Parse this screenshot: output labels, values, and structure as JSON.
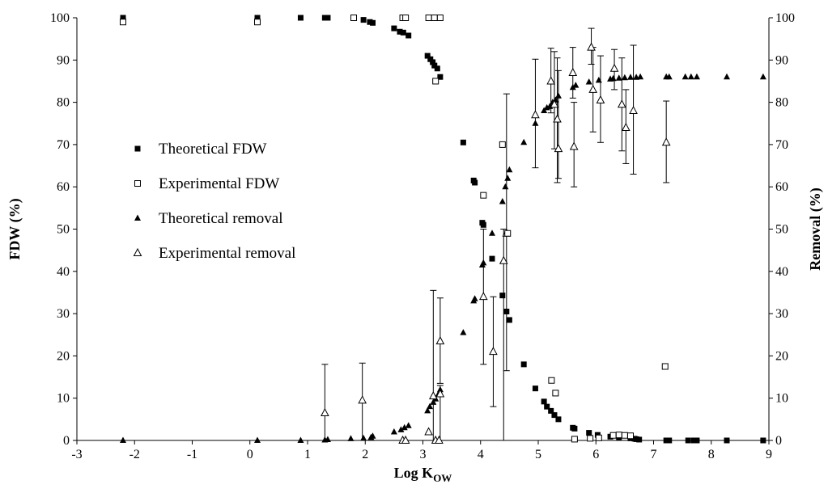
{
  "chart_data": {
    "type": "scatter",
    "xlabel": "Log K",
    "xlabel_sub": "OW",
    "ylabel_left": "FDW (%)",
    "ylabel_right": "Removal (%)",
    "xlim": [
      -3,
      9
    ],
    "ylim": [
      0,
      100
    ],
    "x_ticks": [
      "-3",
      "-2",
      "-1",
      "0",
      "1",
      "2",
      "3",
      "4",
      "5",
      "6",
      "7",
      "8",
      "9"
    ],
    "y_ticks": [
      "0",
      "10",
      "20",
      "30",
      "40",
      "50",
      "60",
      "70",
      "80",
      "90",
      "100"
    ],
    "legend_position": "left-middle",
    "series": [
      {
        "name": "Theoretical FDW",
        "marker": "filled-square",
        "points": [
          [
            -2.2,
            100
          ],
          [
            0.13,
            100
          ],
          [
            0.88,
            100
          ],
          [
            1.3,
            100
          ],
          [
            1.35,
            100
          ],
          [
            1.97,
            99.5
          ],
          [
            2.08,
            99
          ],
          [
            2.13,
            98.8
          ],
          [
            2.5,
            97.5
          ],
          [
            2.6,
            96.7
          ],
          [
            2.66,
            96.5
          ],
          [
            2.75,
            95.8
          ],
          [
            3.08,
            91
          ],
          [
            3.13,
            90.2
          ],
          [
            3.17,
            89.5
          ],
          [
            3.2,
            88.7
          ],
          [
            3.25,
            88
          ],
          [
            3.3,
            86
          ],
          [
            3.7,
            70.5
          ],
          [
            3.88,
            61.5
          ],
          [
            3.9,
            61
          ],
          [
            4.03,
            51.5
          ],
          [
            4.05,
            51
          ],
          [
            4.2,
            43
          ],
          [
            4.38,
            34.3
          ],
          [
            4.45,
            30.5
          ],
          [
            4.5,
            28.5
          ],
          [
            4.75,
            18
          ],
          [
            4.95,
            12.3
          ],
          [
            5.1,
            9.2
          ],
          [
            5.15,
            8
          ],
          [
            5.22,
            7
          ],
          [
            5.28,
            6
          ],
          [
            5.35,
            5
          ],
          [
            5.6,
            3
          ],
          [
            5.63,
            2.8
          ],
          [
            5.88,
            1.8
          ],
          [
            6.03,
            1.3
          ],
          [
            6.25,
            0.9
          ],
          [
            6.4,
            0.7
          ],
          [
            6.6,
            0.5
          ],
          [
            6.67,
            0.4
          ],
          [
            6.7,
            0.3
          ],
          [
            6.75,
            0.2
          ],
          [
            7.22,
            0
          ],
          [
            7.27,
            0
          ],
          [
            7.6,
            0
          ],
          [
            7.7,
            0
          ],
          [
            7.75,
            0
          ],
          [
            8.27,
            0
          ],
          [
            8.9,
            0
          ]
        ]
      },
      {
        "name": "Experimental FDW",
        "marker": "open-square",
        "points": [
          [
            -2.2,
            99
          ],
          [
            0.13,
            99
          ],
          [
            1.8,
            100
          ],
          [
            2.65,
            100
          ],
          [
            2.7,
            100
          ],
          [
            3.1,
            100
          ],
          [
            3.2,
            100
          ],
          [
            3.3,
            100
          ],
          [
            3.22,
            85
          ],
          [
            4.38,
            70
          ],
          [
            4.05,
            58
          ],
          [
            4.47,
            49
          ],
          [
            5.23,
            14.2
          ],
          [
            5.3,
            11.2
          ],
          [
            5.63,
            0.3
          ],
          [
            5.9,
            0.5
          ],
          [
            6.05,
            0.6
          ],
          [
            6.3,
            1.2
          ],
          [
            6.4,
            1.3
          ],
          [
            6.5,
            1.2
          ],
          [
            6.6,
            1.1
          ],
          [
            7.2,
            17.5
          ]
        ]
      },
      {
        "name": "Theoretical removal",
        "marker": "filled-triangle",
        "points": [
          [
            -2.2,
            0
          ],
          [
            0.13,
            0
          ],
          [
            0.88,
            0
          ],
          [
            1.3,
            0.1
          ],
          [
            1.35,
            0.2
          ],
          [
            1.75,
            0.4
          ],
          [
            1.97,
            0.5
          ],
          [
            2.1,
            0.7
          ],
          [
            2.13,
            1
          ],
          [
            2.5,
            2
          ],
          [
            2.62,
            2.5
          ],
          [
            2.68,
            3
          ],
          [
            2.75,
            3.5
          ],
          [
            3.08,
            7
          ],
          [
            3.12,
            8
          ],
          [
            3.18,
            9
          ],
          [
            3.22,
            9.8
          ],
          [
            3.27,
            11
          ],
          [
            3.3,
            12
          ],
          [
            3.7,
            25.5
          ],
          [
            3.88,
            33
          ],
          [
            3.9,
            33.5
          ],
          [
            4.03,
            41.5
          ],
          [
            4.05,
            42
          ],
          [
            4.2,
            49
          ],
          [
            4.38,
            56.5
          ],
          [
            4.43,
            60
          ],
          [
            4.47,
            62
          ],
          [
            4.5,
            64
          ],
          [
            4.75,
            70.5
          ],
          [
            4.95,
            75
          ],
          [
            5.1,
            78
          ],
          [
            5.15,
            78.7
          ],
          [
            5.2,
            79
          ],
          [
            5.25,
            80
          ],
          [
            5.3,
            80.5
          ],
          [
            5.35,
            81.5
          ],
          [
            5.6,
            83.5
          ],
          [
            5.65,
            84
          ],
          [
            5.88,
            84.8
          ],
          [
            6.05,
            85.2
          ],
          [
            6.25,
            85.5
          ],
          [
            6.3,
            85.6
          ],
          [
            6.4,
            85.7
          ],
          [
            6.5,
            85.8
          ],
          [
            6.6,
            85.9
          ],
          [
            6.7,
            85.9
          ],
          [
            6.77,
            86
          ],
          [
            7.22,
            86
          ],
          [
            7.27,
            86
          ],
          [
            7.55,
            86
          ],
          [
            7.65,
            86
          ],
          [
            7.75,
            86
          ],
          [
            8.27,
            86
          ],
          [
            8.9,
            86
          ]
        ]
      },
      {
        "name": "Experimental removal",
        "marker": "open-triangle",
        "points": [
          [
            1.3,
            6.5,
            0,
            18
          ],
          [
            1.95,
            9.5,
            0,
            18.3
          ],
          [
            2.65,
            0,
            null,
            null
          ],
          [
            2.7,
            0,
            null,
            null
          ],
          [
            3.1,
            2,
            null,
            null
          ],
          [
            3.18,
            10.5,
            0,
            35.5
          ],
          [
            3.22,
            0,
            null,
            null
          ],
          [
            3.28,
            0,
            null,
            null
          ],
          [
            3.3,
            23.5,
            13.5,
            33.7
          ],
          [
            3.3,
            11,
            0,
            13
          ],
          [
            4.05,
            34,
            18,
            50
          ],
          [
            4.22,
            21,
            8,
            34
          ],
          [
            4.4,
            42.5,
            0,
            50
          ],
          [
            4.45,
            49,
            16.5,
            82
          ],
          [
            4.95,
            77,
            64.5,
            90.2
          ],
          [
            5.22,
            85,
            77.5,
            92.8
          ],
          [
            5.28,
            79.5,
            69,
            92
          ],
          [
            5.33,
            76,
            61,
            90.5
          ],
          [
            5.35,
            69,
            62,
            87.5
          ],
          [
            5.6,
            87,
            81,
            93
          ],
          [
            5.62,
            69.5,
            60,
            80
          ],
          [
            5.92,
            93,
            89,
            97.5
          ],
          [
            5.95,
            83,
            73,
            93
          ],
          [
            6.08,
            80.5,
            70.5,
            91
          ],
          [
            6.32,
            88,
            83,
            92.5
          ],
          [
            6.45,
            79.5,
            68.5,
            90.5
          ],
          [
            6.52,
            74,
            65.5,
            83
          ],
          [
            6.65,
            78,
            63,
            93.5
          ],
          [
            7.22,
            70.5,
            61,
            80.3
          ]
        ]
      }
    ]
  }
}
